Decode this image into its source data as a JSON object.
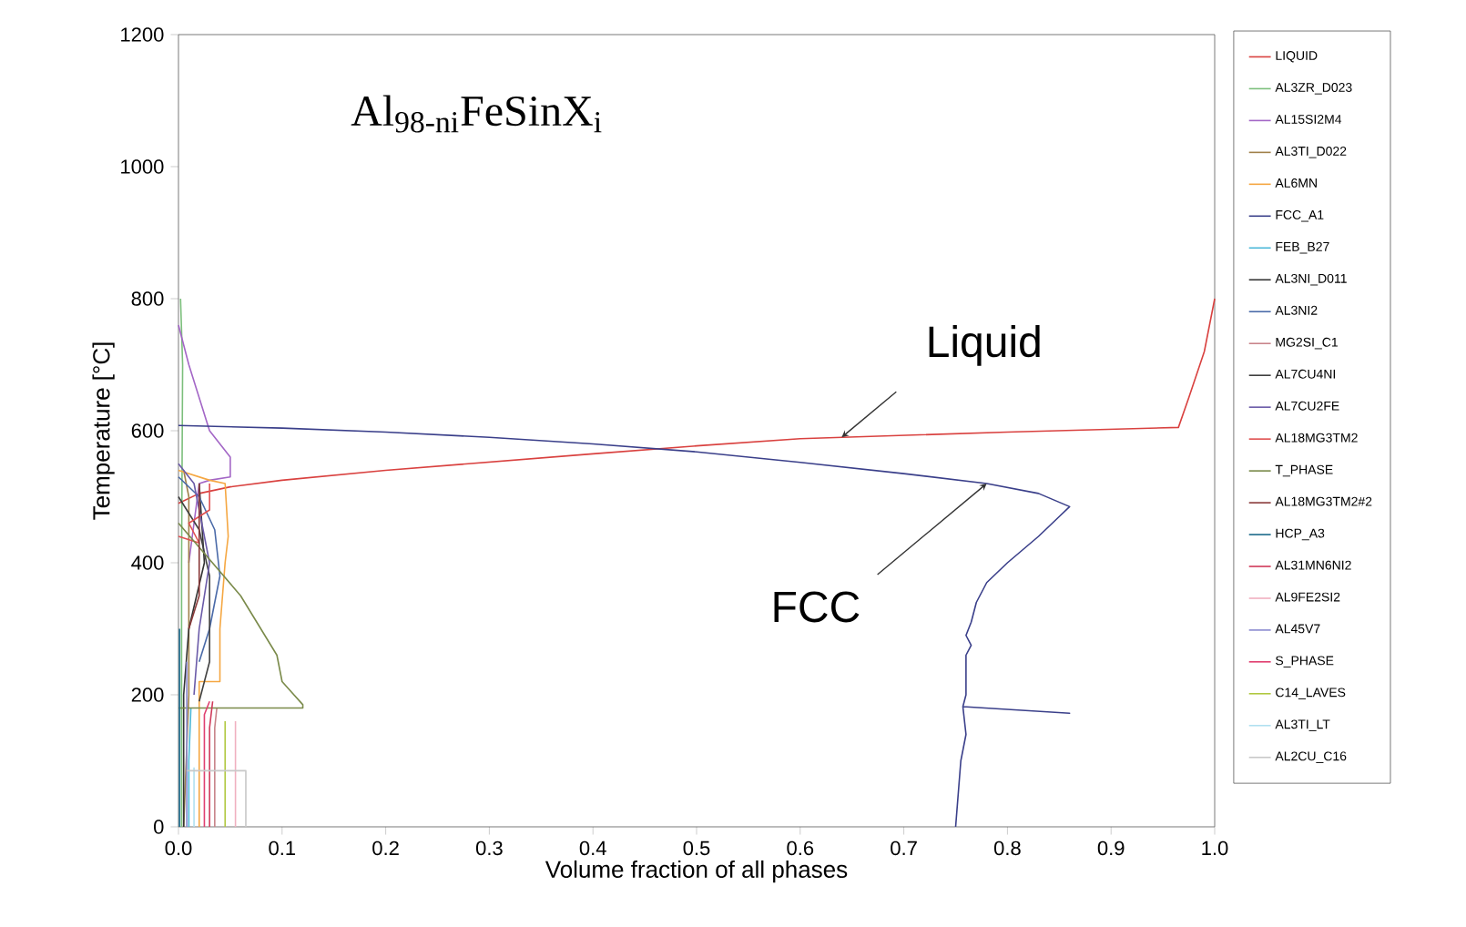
{
  "chart_data": {
    "type": "line",
    "title": "Al$_{98-ni}$FeSinX$_{i}$",
    "xlabel": "Volume fraction of all phases",
    "ylabel": "Temperature [°C]",
    "xlim": [
      0,
      1
    ],
    "ylim": [
      0,
      1200
    ],
    "xticks": [
      {
        "value": 0,
        "label": "0.0"
      },
      0.1,
      0.2,
      0.3,
      0.4,
      0.5,
      0.6,
      0.7,
      0.8,
      0.9,
      {
        "value": 1,
        "label": "1.0"
      }
    ],
    "yticks": [
      0,
      200,
      400,
      600,
      800,
      1000,
      1200
    ],
    "legend": "right",
    "annotations": [
      {
        "text": "Liquid",
        "x": 0.64,
        "y": 590
      },
      {
        "text": "FCC",
        "x": 0.78,
        "y": 520
      }
    ],
    "series": [
      {
        "name": "LIQUID",
        "color": "#d9413f",
        "x": [
          1.0,
          0.99,
          0.975,
          0.965,
          0.8,
          0.6,
          0.5,
          0.4,
          0.2,
          0.1,
          0.05,
          0.02,
          0.0
        ],
        "values": [
          800,
          720,
          650,
          605,
          598,
          588,
          577,
          565,
          540,
          525,
          515,
          505,
          490
        ]
      },
      {
        "name": "AL3ZR_D023",
        "color": "#7cbf7c",
        "x": [
          0.003,
          0.003,
          0.004,
          0.002
        ],
        "values": [
          0,
          400,
          700,
          800
        ]
      },
      {
        "name": "AL15SI2M4",
        "color": "#a366c6",
        "x": [
          0.0,
          0.01,
          0.02,
          0.03,
          0.05,
          0.05,
          0.03,
          0.02,
          0.01
        ],
        "values": [
          760,
          700,
          650,
          600,
          560,
          530,
          525,
          520,
          400
        ]
      },
      {
        "name": "AL3TI_D022",
        "color": "#a0804a",
        "x": [
          0.005,
          0.01,
          0.01,
          0.005
        ],
        "values": [
          0,
          200,
          500,
          540
        ]
      },
      {
        "name": "AL6MN",
        "color": "#f5a742",
        "x": [
          0.0,
          0.03,
          0.045,
          0.048,
          0.045,
          0.04,
          0.04,
          0.02,
          0.02
        ],
        "values": [
          540,
          525,
          520,
          440,
          400,
          300,
          220,
          220,
          0
        ]
      },
      {
        "name": "FCC_A1",
        "color": "#3a3f8a",
        "x": [
          0.0,
          0.1,
          0.2,
          0.3,
          0.4,
          0.5,
          0.6,
          0.7,
          0.78,
          0.83,
          0.86,
          0.85,
          0.83,
          0.8,
          0.78,
          0.77,
          0.765,
          0.76,
          0.765,
          0.76,
          0.76,
          0.757,
          0.86,
          0.757,
          0.76,
          0.755,
          0.75
        ],
        "values": [
          608,
          604,
          598,
          590,
          580,
          568,
          552,
          535,
          520,
          505,
          485,
          470,
          440,
          400,
          370,
          340,
          310,
          290,
          275,
          260,
          200,
          182,
          172,
          182,
          140,
          100,
          0
        ]
      },
      {
        "name": "FEB_B27",
        "color": "#4cb8d8",
        "x": [
          0.01,
          0.01,
          0.012
        ],
        "values": [
          0,
          100,
          180
        ]
      },
      {
        "name": "AL3NI_D011",
        "color": "#333333",
        "x": [
          0.02,
          0.025,
          0.01,
          0.005,
          0.005
        ],
        "values": [
          520,
          400,
          300,
          200,
          0
        ]
      },
      {
        "name": "AL3NI2",
        "color": "#4a6aa8",
        "x": [
          0.0,
          0.02,
          0.035,
          0.04,
          0.03,
          0.02
        ],
        "values": [
          530,
          500,
          450,
          380,
          300,
          250
        ]
      },
      {
        "name": "MG2SI_C1",
        "color": "#c8848a",
        "x": [
          0.035,
          0.035,
          0.037
        ],
        "values": [
          0,
          150,
          180
        ]
      },
      {
        "name": "AL7CU4NI",
        "color": "#404040",
        "x": [
          0.0,
          0.02,
          0.03,
          0.03,
          0.02
        ],
        "values": [
          500,
          450,
          380,
          250,
          190
        ]
      },
      {
        "name": "AL7CU2FE",
        "color": "#6a5aa8",
        "x": [
          0.0,
          0.015,
          0.03,
          0.02,
          0.015
        ],
        "values": [
          550,
          520,
          400,
          300,
          200
        ]
      },
      {
        "name": "AL18MG3TM2",
        "color": "#e05050",
        "x": [
          0.0,
          0.02,
          0.01,
          0.03,
          0.03
        ],
        "values": [
          440,
          430,
          460,
          480,
          520
        ]
      },
      {
        "name": "T_PHASE",
        "color": "#7a8a4a",
        "x": [
          0.0,
          0.06,
          0.095,
          0.1,
          0.12,
          0.12,
          0.01,
          0.0
        ],
        "values": [
          460,
          350,
          260,
          220,
          185,
          180,
          180,
          180
        ]
      },
      {
        "name": "AL18MG3TM2#2",
        "color": "#8a3a3a",
        "x": [
          0.01,
          0.02,
          0.02
        ],
        "values": [
          300,
          350,
          520
        ]
      },
      {
        "name": "HCP_A3",
        "color": "#1a6a8a",
        "x": [
          0.001,
          0.001
        ],
        "values": [
          0,
          300
        ]
      },
      {
        "name": "AL31MN6NI2",
        "color": "#d03a5a",
        "x": [
          0.03,
          0.03,
          0.033
        ],
        "values": [
          0,
          150,
          190
        ]
      },
      {
        "name": "AL9FE2SI2",
        "color": "#f0b0c0",
        "x": [
          0.055,
          0.055
        ],
        "values": [
          0,
          160
        ]
      },
      {
        "name": "AL45V7",
        "color": "#8a8ad0",
        "x": [
          0.008,
          0.008
        ],
        "values": [
          0,
          250
        ]
      },
      {
        "name": "S_PHASE",
        "color": "#e04070",
        "x": [
          0.025,
          0.025,
          0.03
        ],
        "values": [
          0,
          170,
          190
        ]
      },
      {
        "name": "C14_LAVES",
        "color": "#b0c840",
        "x": [
          0.045,
          0.045
        ],
        "values": [
          0,
          160
        ]
      },
      {
        "name": "AL3TI_LT",
        "color": "#b0e0f0",
        "x": [
          0.015,
          0.015
        ],
        "values": [
          0,
          90
        ]
      },
      {
        "name": "AL2CU_C16",
        "color": "#c8c8c8",
        "x": [
          0.008,
          0.065,
          0.065
        ],
        "values": [
          85,
          85,
          0
        ]
      }
    ]
  }
}
